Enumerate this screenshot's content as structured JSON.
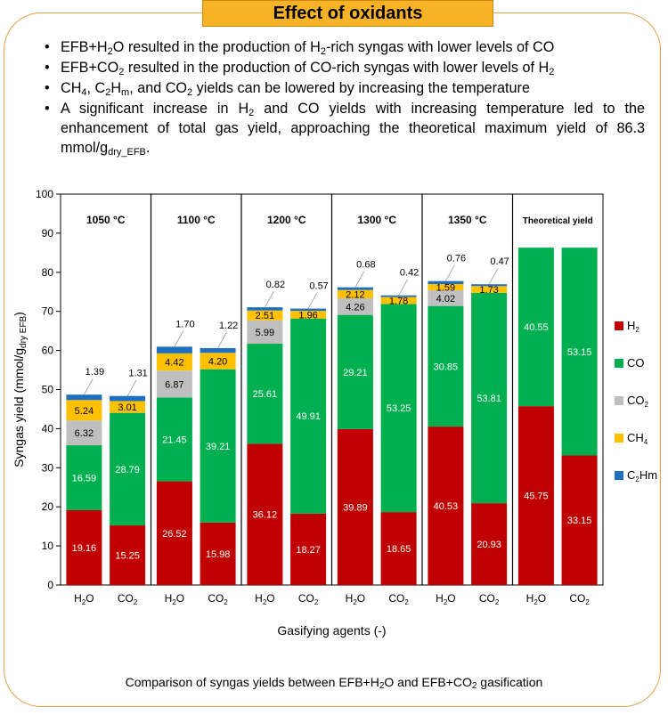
{
  "header": {
    "title": "Effect of oxidants"
  },
  "bullets": [
    {
      "parts": [
        "EFB+H",
        "2",
        "O resulted in the production of H",
        "2",
        "-rich syngas with lower levels of CO"
      ]
    },
    {
      "parts": [
        "EFB+CO",
        "2",
        " resulted in the production of CO-rich syngas with lower levels of H",
        "2"
      ]
    },
    {
      "parts": [
        "CH",
        "4",
        ", C",
        "2",
        "H",
        "m",
        ", and CO",
        "2",
        " yields can be lowered by increasing the temperature"
      ]
    },
    {
      "parts": [
        "A significant increase in H",
        "2",
        " and CO yields with increasing temperature led to the enhancement of total gas yield, approaching the theoretical maximum yield of 86.3 mmol/g",
        "dry_EFB",
        "."
      ]
    }
  ],
  "caption": {
    "parts": [
      "Comparison of syngas yields between EFB+H",
      "2",
      "O and EFB+CO",
      "2",
      " gasification"
    ]
  },
  "colors": {
    "H2": "#c00000",
    "CO": "#00b050",
    "CO2": "#bfbfbf",
    "CH4": "#ffc000",
    "C2Hm": "#1f6fbf",
    "frame": "#e8a24a",
    "title_bg": "#f7b325"
  },
  "chart_data": {
    "type": "bar",
    "stacked": true,
    "ylabel": "Syngas yield (mmol/g",
    "ylabel_sub": "dry EFB",
    "ylabel_end": ")",
    "xlabel": "Gasifying agents (-)",
    "ylim": [
      0,
      100
    ],
    "yticks": [
      "0",
      "10",
      "20",
      "30",
      "40",
      "50",
      "60",
      "70",
      "80",
      "90",
      "100"
    ],
    "legend_position": "right",
    "series": [
      {
        "key": "H2",
        "name": "H",
        "sub": "2",
        "color": "#c00000"
      },
      {
        "key": "CO",
        "name": "CO",
        "sub": "",
        "color": "#00b050"
      },
      {
        "key": "CO2",
        "name": "CO",
        "sub": "2",
        "color": "#bfbfbf"
      },
      {
        "key": "CH4",
        "name": "CH",
        "sub": "4",
        "color": "#ffc000"
      },
      {
        "key": "C2Hm",
        "name": "C",
        "sub": "2",
        "name_end": "Hm",
        "color": "#1f6fbf"
      }
    ],
    "groups": [
      {
        "label": "1050 °C",
        "bars": [
          {
            "agent": "H",
            "agent_sub": "2",
            "agent_end": "O",
            "values": [
              19.16,
              16.59,
              6.32,
              5.24,
              1.39
            ],
            "labels": [
              "19.16",
              "16.59",
              "6.32",
              "5.24",
              "1.39"
            ]
          },
          {
            "agent": "CO",
            "agent_sub": "2",
            "agent_end": "",
            "values": [
              15.25,
              28.79,
              0,
              3.01,
              1.31
            ],
            "labels": [
              "15.25",
              "28.79",
              "",
              "3.01",
              "1.31"
            ]
          }
        ]
      },
      {
        "label": "1100 °C",
        "bars": [
          {
            "agent": "H",
            "agent_sub": "2",
            "agent_end": "O",
            "values": [
              26.52,
              21.45,
              6.87,
              4.42,
              1.7
            ],
            "labels": [
              "26.52",
              "21.45",
              "6.87",
              "4.42",
              "1.70"
            ]
          },
          {
            "agent": "CO",
            "agent_sub": "2",
            "agent_end": "",
            "values": [
              15.98,
              39.21,
              0,
              4.2,
              1.22
            ],
            "labels": [
              "15.98",
              "39.21",
              "",
              "4.20",
              "1.22"
            ]
          }
        ]
      },
      {
        "label": "1200 °C",
        "bars": [
          {
            "agent": "H",
            "agent_sub": "2",
            "agent_end": "O",
            "values": [
              36.12,
              25.61,
              5.99,
              2.51,
              0.82
            ],
            "labels": [
              "36.12",
              "25.61",
              "5.99",
              "2.51",
              "0.82"
            ]
          },
          {
            "agent": "CO",
            "agent_sub": "2",
            "agent_end": "",
            "values": [
              18.27,
              49.91,
              0,
              1.96,
              0.57
            ],
            "labels": [
              "18.27",
              "49.91",
              "",
              "1.96",
              "0.57"
            ]
          }
        ]
      },
      {
        "label": "1300 °C",
        "bars": [
          {
            "agent": "H",
            "agent_sub": "2",
            "agent_end": "O",
            "values": [
              39.89,
              29.21,
              4.26,
              2.12,
              0.68
            ],
            "labels": [
              "39.89",
              "29.21",
              "4.26",
              "2.12",
              "0.68"
            ]
          },
          {
            "agent": "CO",
            "agent_sub": "2",
            "agent_end": "",
            "values": [
              18.65,
              53.25,
              0,
              1.78,
              0.42
            ],
            "labels": [
              "18.65",
              "53.25",
              "",
              "1.78",
              "0.42"
            ]
          }
        ]
      },
      {
        "label": "1350 °C",
        "bars": [
          {
            "agent": "H",
            "agent_sub": "2",
            "agent_end": "O",
            "values": [
              40.53,
              30.85,
              4.02,
              1.59,
              0.76
            ],
            "labels": [
              "40.53",
              "30.85",
              "4.02",
              "1.59",
              "0.76"
            ]
          },
          {
            "agent": "CO",
            "agent_sub": "2",
            "agent_end": "",
            "values": [
              20.93,
              53.81,
              0,
              1.73,
              0.47
            ],
            "labels": [
              "20.93",
              "53.81",
              "",
              "1.73",
              "0.47"
            ]
          }
        ]
      },
      {
        "label": "Theoretical yield",
        "bars": [
          {
            "agent": "H",
            "agent_sub": "2",
            "agent_end": "O",
            "values": [
              45.75,
              40.55,
              0,
              0,
              0
            ],
            "labels": [
              "45.75",
              "40.55",
              "",
              "",
              ""
            ]
          },
          {
            "agent": "CO",
            "agent_sub": "2",
            "agent_end": "",
            "values": [
              33.15,
              53.15,
              0,
              0,
              0
            ],
            "labels": [
              "33.15",
              "53.15",
              "",
              "",
              ""
            ]
          }
        ]
      }
    ]
  }
}
